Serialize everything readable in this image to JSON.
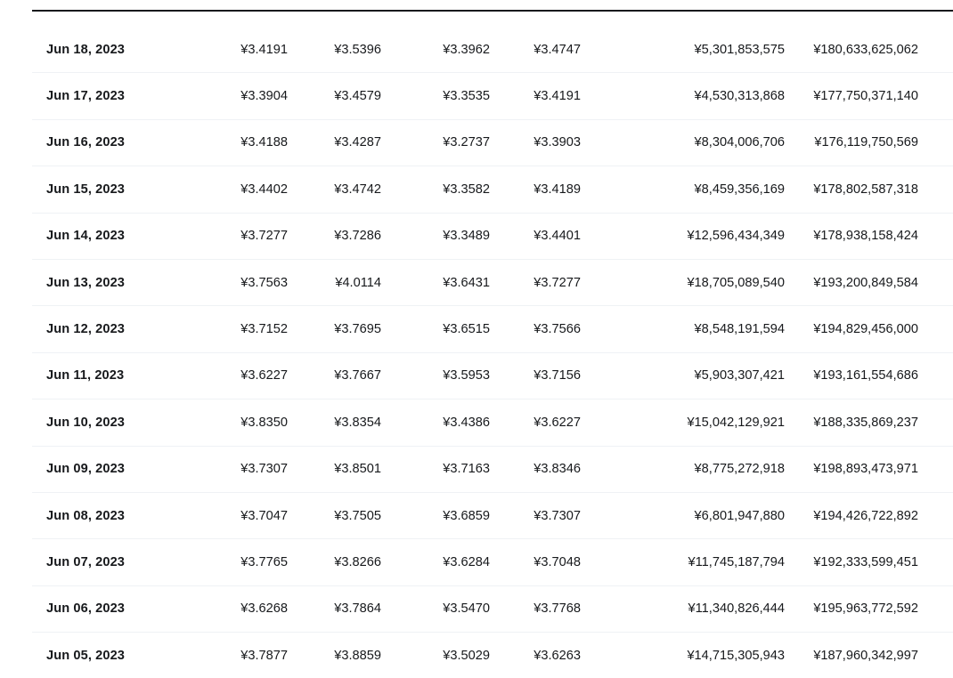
{
  "page": {
    "background": "#ffffff"
  },
  "colors": {
    "text": "#17191c",
    "separator": "#eff2f5",
    "header_rule": "#17191c"
  },
  "table": {
    "column_keys": [
      "date",
      "open",
      "high",
      "low",
      "close",
      "volume",
      "market_cap"
    ],
    "currency_symbol": "¥",
    "rows": [
      {
        "date": "Jun 18, 2023",
        "open": "¥3.4191",
        "high": "¥3.5396",
        "low": "¥3.3962",
        "close": "¥3.4747",
        "volume": "¥5,301,853,575",
        "market_cap": "¥180,633,625,062"
      },
      {
        "date": "Jun 17, 2023",
        "open": "¥3.3904",
        "high": "¥3.4579",
        "low": "¥3.3535",
        "close": "¥3.4191",
        "volume": "¥4,530,313,868",
        "market_cap": "¥177,750,371,140"
      },
      {
        "date": "Jun 16, 2023",
        "open": "¥3.4188",
        "high": "¥3.4287",
        "low": "¥3.2737",
        "close": "¥3.3903",
        "volume": "¥8,304,006,706",
        "market_cap": "¥176,119,750,569"
      },
      {
        "date": "Jun 15, 2023",
        "open": "¥3.4402",
        "high": "¥3.4742",
        "low": "¥3.3582",
        "close": "¥3.4189",
        "volume": "¥8,459,356,169",
        "market_cap": "¥178,802,587,318"
      },
      {
        "date": "Jun 14, 2023",
        "open": "¥3.7277",
        "high": "¥3.7286",
        "low": "¥3.3489",
        "close": "¥3.4401",
        "volume": "¥12,596,434,349",
        "market_cap": "¥178,938,158,424"
      },
      {
        "date": "Jun 13, 2023",
        "open": "¥3.7563",
        "high": "¥4.0114",
        "low": "¥3.6431",
        "close": "¥3.7277",
        "volume": "¥18,705,089,540",
        "market_cap": "¥193,200,849,584"
      },
      {
        "date": "Jun 12, 2023",
        "open": "¥3.7152",
        "high": "¥3.7695",
        "low": "¥3.6515",
        "close": "¥3.7566",
        "volume": "¥8,548,191,594",
        "market_cap": "¥194,829,456,000"
      },
      {
        "date": "Jun 11, 2023",
        "open": "¥3.6227",
        "high": "¥3.7667",
        "low": "¥3.5953",
        "close": "¥3.7156",
        "volume": "¥5,903,307,421",
        "market_cap": "¥193,161,554,686"
      },
      {
        "date": "Jun 10, 2023",
        "open": "¥3.8350",
        "high": "¥3.8354",
        "low": "¥3.4386",
        "close": "¥3.6227",
        "volume": "¥15,042,129,921",
        "market_cap": "¥188,335,869,237"
      },
      {
        "date": "Jun 09, 2023",
        "open": "¥3.7307",
        "high": "¥3.8501",
        "low": "¥3.7163",
        "close": "¥3.8346",
        "volume": "¥8,775,272,918",
        "market_cap": "¥198,893,473,971"
      },
      {
        "date": "Jun 08, 2023",
        "open": "¥3.7047",
        "high": "¥3.7505",
        "low": "¥3.6859",
        "close": "¥3.7307",
        "volume": "¥6,801,947,880",
        "market_cap": "¥194,426,722,892"
      },
      {
        "date": "Jun 07, 2023",
        "open": "¥3.7765",
        "high": "¥3.8266",
        "low": "¥3.6284",
        "close": "¥3.7048",
        "volume": "¥11,745,187,794",
        "market_cap": "¥192,333,599,451"
      },
      {
        "date": "Jun 06, 2023",
        "open": "¥3.6268",
        "high": "¥3.7864",
        "low": "¥3.5470",
        "close": "¥3.7768",
        "volume": "¥11,340,826,444",
        "market_cap": "¥195,963,772,592"
      },
      {
        "date": "Jun 05, 2023",
        "open": "¥3.7877",
        "high": "¥3.8859",
        "low": "¥3.5029",
        "close": "¥3.6263",
        "volume": "¥14,715,305,943",
        "market_cap": "¥187,960,342,997"
      }
    ]
  }
}
